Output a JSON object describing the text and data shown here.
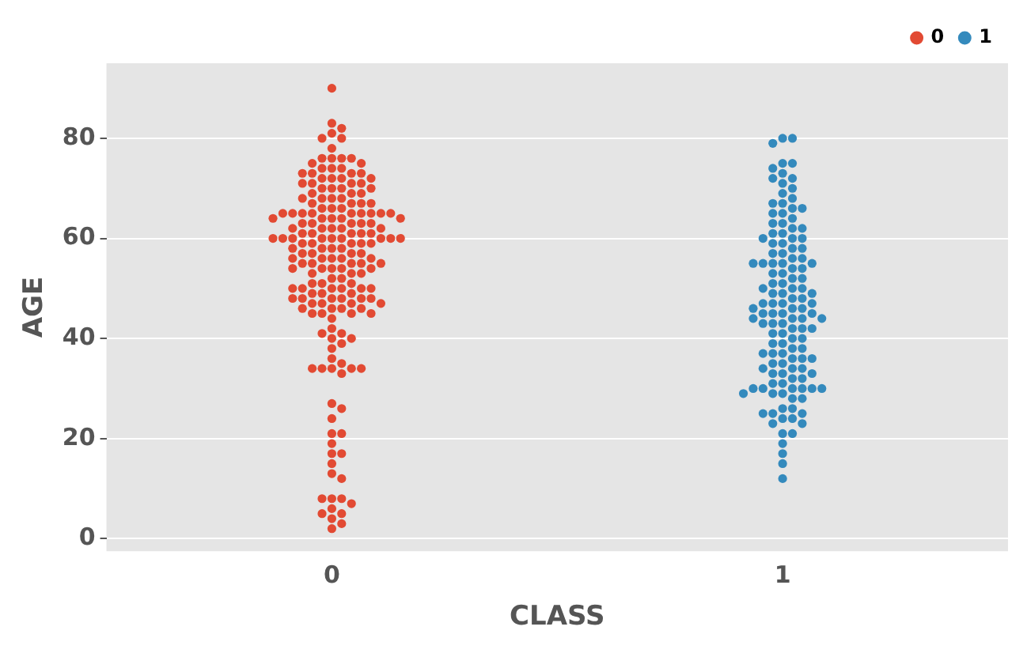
{
  "chart_data": {
    "type": "scatter",
    "xlabel": "CLASS",
    "ylabel": "AGE",
    "categories": [
      "0",
      "1"
    ],
    "ylim": [
      -2.5,
      95
    ],
    "yticks": [
      0,
      20,
      40,
      60,
      80
    ],
    "grid": "y",
    "legend": "top right",
    "marker": "circle",
    "series": [
      {
        "name": "0",
        "color": "#e24a33",
        "x": [
          "0",
          "0",
          "0",
          "0",
          "0",
          "0",
          "0",
          "0",
          "0",
          "0",
          "0",
          "0",
          "0",
          "0",
          "0",
          "0",
          "0",
          "0",
          "0",
          "0",
          "0",
          "0",
          "0",
          "0",
          "0",
          "0",
          "0",
          "0",
          "0",
          "0",
          "0",
          "0",
          "0",
          "0",
          "0",
          "0",
          "0",
          "0",
          "0",
          "0",
          "0",
          "0",
          "0",
          "0",
          "0",
          "0",
          "0",
          "0",
          "0",
          "0",
          "0",
          "0",
          "0",
          "0",
          "0",
          "0",
          "0",
          "0",
          "0",
          "0",
          "0",
          "0",
          "0",
          "0",
          "0",
          "0",
          "0",
          "0",
          "0",
          "0",
          "0",
          "0",
          "0",
          "0",
          "0",
          "0",
          "0",
          "0",
          "0",
          "0",
          "0",
          "0",
          "0",
          "0",
          "0",
          "0",
          "0",
          "0",
          "0",
          "0",
          "0",
          "0",
          "0",
          "0",
          "0",
          "0",
          "0",
          "0",
          "0",
          "0",
          "0",
          "0",
          "0",
          "0",
          "0",
          "0",
          "0",
          "0",
          "0",
          "0",
          "0",
          "0",
          "0",
          "0",
          "0",
          "0",
          "0",
          "0",
          "0",
          "0",
          "0",
          "0",
          "0",
          "0",
          "0",
          "0",
          "0",
          "0",
          "0",
          "0",
          "0",
          "0",
          "0",
          "0",
          "0",
          "0",
          "0",
          "0",
          "0",
          "0",
          "0",
          "0",
          "0",
          "0",
          "0",
          "0",
          "0",
          "0",
          "0",
          "0",
          "0",
          "0",
          "0",
          "0",
          "0",
          "0",
          "0",
          "0",
          "0",
          "0",
          "0",
          "0",
          "0",
          "0",
          "0",
          "0",
          "0",
          "0",
          "0",
          "0",
          "0",
          "0",
          "0",
          "0",
          "0",
          "0",
          "0",
          "0",
          "0",
          "0",
          "0",
          "0",
          "0",
          "0"
        ],
        "values": [
          90,
          83,
          82,
          81,
          80,
          80,
          78,
          76,
          76,
          76,
          76,
          75,
          75,
          74,
          74,
          74,
          73,
          73,
          73,
          73,
          72,
          72,
          72,
          72,
          71,
          71,
          71,
          71,
          70,
          70,
          70,
          70,
          69,
          69,
          69,
          68,
          68,
          68,
          68,
          67,
          67,
          67,
          67,
          66,
          66,
          66,
          65,
          65,
          65,
          65,
          65,
          65,
          65,
          65,
          65,
          64,
          64,
          64,
          64,
          64,
          63,
          63,
          63,
          63,
          63,
          62,
          62,
          62,
          62,
          62,
          61,
          61,
          61,
          61,
          61,
          60,
          60,
          60,
          60,
          60,
          60,
          60,
          60,
          60,
          59,
          59,
          59,
          59,
          59,
          58,
          58,
          58,
          58,
          57,
          57,
          57,
          57,
          56,
          56,
          56,
          56,
          56,
          55,
          55,
          55,
          55,
          55,
          54,
          54,
          54,
          54,
          54,
          53,
          53,
          53,
          52,
          52,
          51,
          51,
          51,
          50,
          50,
          50,
          50,
          50,
          50,
          49,
          49,
          49,
          48,
          48,
          48,
          48,
          48,
          48,
          47,
          47,
          47,
          47,
          46,
          46,
          46,
          46,
          45,
          45,
          45,
          45,
          44,
          42,
          41,
          41,
          40,
          40,
          39,
          38,
          36,
          35,
          34,
          34,
          34,
          34,
          34,
          33,
          27,
          26,
          24,
          21,
          21,
          19,
          17,
          17,
          15,
          13,
          12,
          8,
          8,
          8,
          7,
          6,
          5,
          5,
          4,
          3,
          2
        ]
      },
      {
        "name": "1",
        "color": "#348abd",
        "x": [
          "1",
          "1",
          "1",
          "1",
          "1",
          "1",
          "1",
          "1",
          "1",
          "1",
          "1",
          "1",
          "1",
          "1",
          "1",
          "1",
          "1",
          "1",
          "1",
          "1",
          "1",
          "1",
          "1",
          "1",
          "1",
          "1",
          "1",
          "1",
          "1",
          "1",
          "1",
          "1",
          "1",
          "1",
          "1",
          "1",
          "1",
          "1",
          "1",
          "1",
          "1",
          "1",
          "1",
          "1",
          "1",
          "1",
          "1",
          "1",
          "1",
          "1",
          "1",
          "1",
          "1",
          "1",
          "1",
          "1",
          "1",
          "1",
          "1",
          "1",
          "1",
          "1",
          "1",
          "1",
          "1",
          "1",
          "1",
          "1",
          "1",
          "1",
          "1",
          "1",
          "1",
          "1",
          "1",
          "1",
          "1",
          "1",
          "1",
          "1",
          "1",
          "1",
          "1",
          "1",
          "1",
          "1",
          "1",
          "1",
          "1",
          "1",
          "1",
          "1",
          "1",
          "1",
          "1",
          "1",
          "1",
          "1",
          "1",
          "1",
          "1",
          "1",
          "1",
          "1",
          "1",
          "1",
          "1",
          "1",
          "1",
          "1",
          "1",
          "1",
          "1",
          "1",
          "1",
          "1",
          "1",
          "1",
          "1",
          "1",
          "1",
          "1",
          "1",
          "1",
          "1",
          "1",
          "1",
          "1",
          "1",
          "1",
          "1"
        ],
        "values": [
          80,
          80,
          79,
          75,
          75,
          74,
          73,
          72,
          72,
          71,
          70,
          69,
          68,
          67,
          67,
          66,
          66,
          65,
          65,
          64,
          63,
          63,
          62,
          62,
          61,
          61,
          60,
          60,
          60,
          59,
          59,
          58,
          58,
          57,
          57,
          56,
          56,
          55,
          55,
          55,
          55,
          55,
          54,
          54,
          53,
          53,
          52,
          52,
          51,
          51,
          50,
          50,
          50,
          49,
          49,
          49,
          48,
          48,
          47,
          47,
          47,
          47,
          46,
          46,
          46,
          45,
          45,
          45,
          45,
          44,
          44,
          44,
          44,
          43,
          43,
          43,
          42,
          42,
          42,
          41,
          41,
          40,
          40,
          39,
          39,
          38,
          38,
          37,
          37,
          37,
          36,
          36,
          36,
          35,
          35,
          34,
          34,
          34,
          33,
          33,
          33,
          32,
          32,
          31,
          31,
          30,
          30,
          30,
          30,
          30,
          30,
          29,
          29,
          29,
          28,
          28,
          26,
          26,
          25,
          25,
          25,
          24,
          24,
          23,
          23,
          21,
          21,
          19,
          17,
          15,
          12
        ]
      }
    ]
  }
}
